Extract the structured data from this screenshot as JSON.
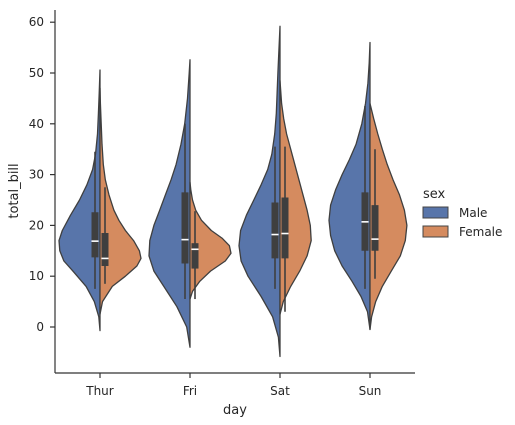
{
  "chart_data": {
    "type": "violin",
    "split": true,
    "title": "",
    "xlabel": "day",
    "ylabel": "total_bill",
    "categories": [
      "Thur",
      "Fri",
      "Sat",
      "Sun"
    ],
    "ylim": [
      -9,
      63
    ],
    "yticks": [
      0,
      10,
      20,
      30,
      40,
      50,
      60
    ],
    "grid": false,
    "legend": {
      "title": "sex",
      "placement": "right",
      "entries": [
        {
          "label": "Male",
          "color": "#5875aa"
        },
        {
          "label": "Female",
          "color": "#d58b5f"
        }
      ]
    },
    "series": [
      {
        "name": "Male",
        "color": "#5875aa",
        "groups": [
          {
            "day": "Thur",
            "ymin": -0.7,
            "ymax": 50.6,
            "box": {
              "q1": 13.7,
              "median": 16.9,
              "q3": 22.6,
              "whisker_low": 7.5,
              "whisker_high": 34.5
            },
            "density": [
              [
                -0.7,
                0.0
              ],
              [
                2,
                0.03
              ],
              [
                5,
                0.14
              ],
              [
                8,
                0.34
              ],
              [
                11,
                0.66
              ],
              [
                13,
                0.88
              ],
              [
                15,
                0.98
              ],
              [
                17,
                1.0
              ],
              [
                19,
                0.92
              ],
              [
                22,
                0.72
              ],
              [
                25,
                0.5
              ],
              [
                28,
                0.32
              ],
              [
                31,
                0.18
              ],
              [
                34,
                0.11
              ],
              [
                38,
                0.06
              ],
              [
                42,
                0.04
              ],
              [
                46,
                0.02
              ],
              [
                50.6,
                0.0
              ]
            ]
          },
          {
            "day": "Fri",
            "ymin": -4,
            "ymax": 52.6,
            "box": {
              "q1": 12.5,
              "median": 17.2,
              "q3": 26.5,
              "whisker_low": 5.5,
              "whisker_high": 40.0
            },
            "density": [
              [
                -4,
                0.0
              ],
              [
                0,
                0.08
              ],
              [
                4,
                0.32
              ],
              [
                8,
                0.64
              ],
              [
                11,
                0.88
              ],
              [
                14,
                1.0
              ],
              [
                17,
                0.98
              ],
              [
                20,
                0.88
              ],
              [
                23,
                0.74
              ],
              [
                26,
                0.6
              ],
              [
                29,
                0.46
              ],
              [
                32,
                0.34
              ],
              [
                36,
                0.22
              ],
              [
                40,
                0.13
              ],
              [
                45,
                0.06
              ],
              [
                50,
                0.02
              ],
              [
                52.6,
                0.0
              ]
            ]
          },
          {
            "day": "Sat",
            "ymin": -5.8,
            "ymax": 59.2,
            "box": {
              "q1": 13.5,
              "median": 18.2,
              "q3": 24.5,
              "whisker_low": 7.5,
              "whisker_high": 35.5
            },
            "density": [
              [
                -5.8,
                0.0
              ],
              [
                -2,
                0.04
              ],
              [
                2,
                0.18
              ],
              [
                6,
                0.46
              ],
              [
                10,
                0.78
              ],
              [
                13,
                0.95
              ],
              [
                16,
                1.0
              ],
              [
                19,
                0.96
              ],
              [
                22,
                0.82
              ],
              [
                25,
                0.64
              ],
              [
                28,
                0.46
              ],
              [
                31,
                0.3
              ],
              [
                34,
                0.2
              ],
              [
                38,
                0.13
              ],
              [
                42,
                0.09
              ],
              [
                46,
                0.07
              ],
              [
                50,
                0.05
              ],
              [
                54,
                0.03
              ],
              [
                59.2,
                0.0
              ]
            ]
          },
          {
            "day": "Sun",
            "ymin": -0.5,
            "ymax": 56.0,
            "box": {
              "q1": 15.0,
              "median": 20.7,
              "q3": 26.5,
              "whisker_low": 7.5,
              "whisker_high": 43.5
            },
            "density": [
              [
                -0.5,
                0.0
              ],
              [
                3,
                0.06
              ],
              [
                6,
                0.22
              ],
              [
                9,
                0.44
              ],
              [
                12,
                0.68
              ],
              [
                15,
                0.86
              ],
              [
                18,
                0.96
              ],
              [
                21,
                1.0
              ],
              [
                24,
                0.96
              ],
              [
                27,
                0.84
              ],
              [
                30,
                0.68
              ],
              [
                33,
                0.5
              ],
              [
                36,
                0.34
              ],
              [
                40,
                0.2
              ],
              [
                44,
                0.11
              ],
              [
                48,
                0.05
              ],
              [
                52,
                0.02
              ],
              [
                56,
                0.0
              ]
            ]
          }
        ]
      },
      {
        "name": "Female",
        "color": "#d58b5f",
        "groups": [
          {
            "day": "Thur",
            "ymin": 2.5,
            "ymax": 47.0,
            "box": {
              "q1": 12.0,
              "median": 13.5,
              "q3": 18.5,
              "whisker_low": 8.5,
              "whisker_high": 27.5
            },
            "density": [
              [
                2.5,
                0.0
              ],
              [
                5,
                0.06
              ],
              [
                8,
                0.3
              ],
              [
                10,
                0.62
              ],
              [
                12,
                0.9
              ],
              [
                13.5,
                1.0
              ],
              [
                15,
                0.96
              ],
              [
                17,
                0.82
              ],
              [
                19,
                0.62
              ],
              [
                21,
                0.46
              ],
              [
                23,
                0.34
              ],
              [
                26,
                0.22
              ],
              [
                29,
                0.13
              ],
              [
                32,
                0.08
              ],
              [
                36,
                0.05
              ],
              [
                40,
                0.03
              ],
              [
                44,
                0.01
              ],
              [
                47,
                0.0
              ]
            ]
          },
          {
            "day": "Fri",
            "ymin": 5.5,
            "ymax": 28.5,
            "box": {
              "q1": 11.5,
              "median": 15.3,
              "q3": 16.5,
              "whisker_low": 5.5,
              "whisker_high": 22.8
            },
            "density": [
              [
                5.5,
                0.0
              ],
              [
                7,
                0.06
              ],
              [
                9,
                0.24
              ],
              [
                11,
                0.5
              ],
              [
                13,
                0.86
              ],
              [
                14.5,
                1.0
              ],
              [
                16,
                0.96
              ],
              [
                17.5,
                0.78
              ],
              [
                19,
                0.52
              ],
              [
                21,
                0.28
              ],
              [
                23,
                0.14
              ],
              [
                25,
                0.06
              ],
              [
                27,
                0.02
              ],
              [
                28.5,
                0.0
              ]
            ]
          },
          {
            "day": "Sat",
            "ymin": 2.5,
            "ymax": 48.5,
            "box": {
              "q1": 13.5,
              "median": 18.4,
              "q3": 25.5,
              "whisker_low": 3.0,
              "whisker_high": 35.5
            },
            "density": [
              [
                2.5,
                0.0
              ],
              [
                5,
                0.08
              ],
              [
                8,
                0.26
              ],
              [
                11,
                0.48
              ],
              [
                14,
                0.66
              ],
              [
                17,
                0.76
              ],
              [
                20,
                0.74
              ],
              [
                23,
                0.66
              ],
              [
                26,
                0.56
              ],
              [
                29,
                0.46
              ],
              [
                32,
                0.36
              ],
              [
                35,
                0.26
              ],
              [
                38,
                0.16
              ],
              [
                41,
                0.09
              ],
              [
                44,
                0.04
              ],
              [
                48.5,
                0.0
              ]
            ]
          },
          {
            "day": "Sun",
            "ymin": -0.5,
            "ymax": 44.0,
            "box": {
              "q1": 15.0,
              "median": 17.3,
              "q3": 24.0,
              "whisker_low": 9.5,
              "whisker_high": 35.0
            },
            "density": [
              [
                -0.5,
                0.0
              ],
              [
                2,
                0.04
              ],
              [
                5,
                0.14
              ],
              [
                8,
                0.3
              ],
              [
                11,
                0.52
              ],
              [
                14,
                0.74
              ],
              [
                17,
                0.86
              ],
              [
                20,
                0.9
              ],
              [
                23,
                0.84
              ],
              [
                26,
                0.72
              ],
              [
                29,
                0.56
              ],
              [
                32,
                0.42
              ],
              [
                35,
                0.3
              ],
              [
                38,
                0.19
              ],
              [
                41,
                0.09
              ],
              [
                44,
                0.0
              ]
            ]
          }
        ]
      }
    ]
  }
}
